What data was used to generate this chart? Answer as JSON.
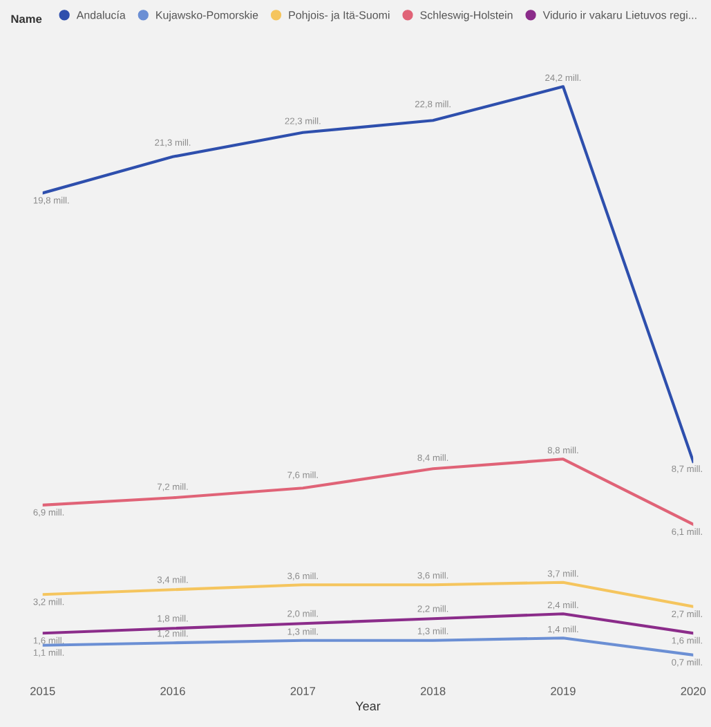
{
  "chart_data": {
    "type": "line",
    "xlabel": "Year",
    "legend_title": "Name",
    "legend": "top",
    "grid": false,
    "marker": "none",
    "line_style": "solid",
    "tick_labels": "x",
    "x": [
      2015,
      2016,
      2017,
      2018,
      2019,
      2020
    ],
    "xlim": [
      2015,
      2020
    ],
    "xticks": [
      2015,
      2016,
      2017,
      2018,
      2019,
      2020
    ],
    "series": [
      {
        "name": "Andalucía",
        "color": "#2e4fad",
        "values": [
          19.8,
          21.3,
          22.3,
          22.8,
          24.2,
          8.7
        ],
        "value_labels": [
          "19,8 mill.",
          "21,3 mill.",
          "22,3 mill.",
          "22,8 mill.",
          "24,2 mill.",
          "8,7 mill."
        ]
      },
      {
        "name": "Kujawsko-Pomorskie",
        "color": "#6b8fd4",
        "values": [
          1.1,
          1.2,
          1.3,
          1.3,
          1.4,
          0.7
        ],
        "value_labels": [
          "1,1 mill.",
          "1,2 mill.",
          "1,3 mill.",
          "1,3 mill.",
          "1,4 mill.",
          "0,7 mill."
        ]
      },
      {
        "name": "Pohjois- ja Itä-Suomi",
        "color": "#f5c55e",
        "values": [
          3.2,
          3.4,
          3.6,
          3.6,
          3.7,
          2.7
        ],
        "value_labels": [
          "3,2 mill.",
          "3,4 mill.",
          "3,6 mill.",
          "3,6 mill.",
          "3,7 mill.",
          "2,7 mill."
        ]
      },
      {
        "name": "Schleswig-Holstein",
        "color": "#e06377",
        "values": [
          6.9,
          7.2,
          7.6,
          8.4,
          8.8,
          6.1
        ],
        "value_labels": [
          "6,9 mill.",
          "7,2 mill.",
          "7,6 mill.",
          "8,4 mill.",
          "8,8 mill.",
          "6,1 mill."
        ]
      },
      {
        "name": "Vidurio ir vakaru Lietuvos regi...",
        "color": "#8b2c8a",
        "values": [
          1.6,
          1.8,
          2.0,
          2.2,
          2.4,
          1.6
        ],
        "value_labels": [
          "1,6 mill.",
          "1,8 mill.",
          "2,0 mill.",
          "2,2 mill.",
          "2,4 mill.",
          "1,6 mill."
        ]
      }
    ]
  }
}
